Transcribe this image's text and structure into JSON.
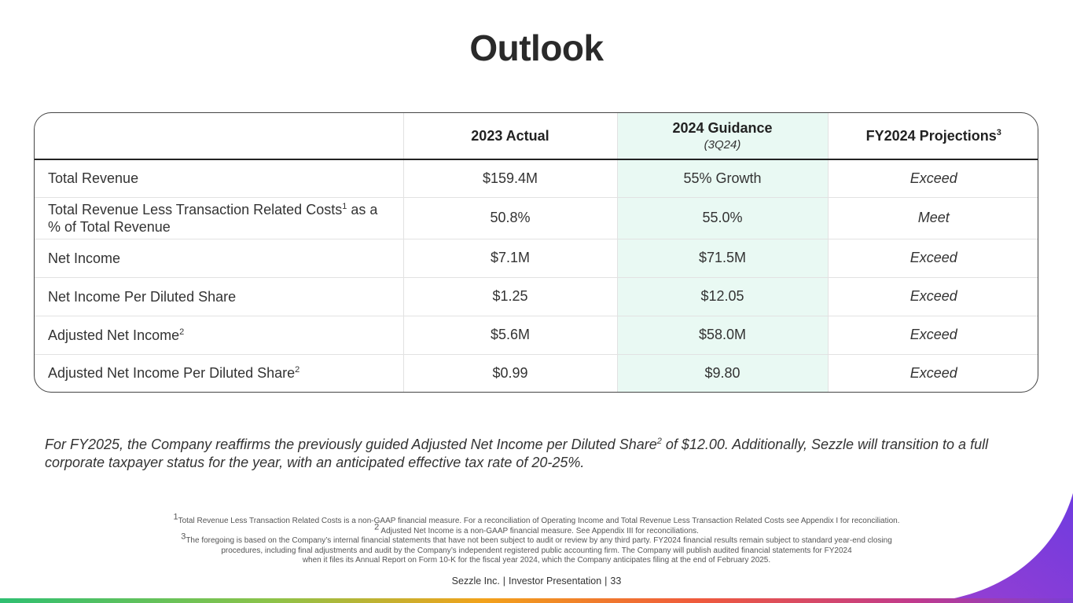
{
  "title": "Outlook",
  "table": {
    "headers": {
      "col2": "2023 Actual",
      "col3": "2024 Guidance",
      "col3_sub": "(3Q24)",
      "col4": "FY2024 Projections",
      "col4_sup": "3"
    },
    "rows": [
      {
        "label": "Total Revenue",
        "sup": "",
        "label_cont": "",
        "actual": "$159.4M",
        "guidance": "55% Growth",
        "projection": "Exceed"
      },
      {
        "label": "Total Revenue Less Transaction Related Costs",
        "sup": "1",
        "label_cont": " as a % of Total Revenue",
        "actual": "50.8%",
        "guidance": "55.0%",
        "projection": "Meet"
      },
      {
        "label": "Net Income",
        "sup": "",
        "label_cont": "",
        "actual": "$7.1M",
        "guidance": "$71.5M",
        "projection": "Exceed"
      },
      {
        "label": "Net Income Per Diluted Share",
        "sup": "",
        "label_cont": "",
        "actual": "$1.25",
        "guidance": "$12.05",
        "projection": "Exceed"
      },
      {
        "label": "Adjusted Net Income",
        "sup": "2",
        "label_cont": "",
        "actual": "$5.6M",
        "guidance": "$58.0M",
        "projection": "Exceed"
      },
      {
        "label": "Adjusted Net Income Per Diluted Share",
        "sup": "2",
        "label_cont": "",
        "actual": "$0.99",
        "guidance": "$9.80",
        "projection": "Exceed"
      }
    ]
  },
  "note": {
    "part1": "For FY2025, the Company reaffirms the previously guided Adjusted Net Income per Diluted Share",
    "sup": "2",
    "part2": " of $12.00. Additionally, Sezzle will transition to a full corporate taxpayer status for the year, with an anticipated effective tax rate of 20-25%."
  },
  "footnotes": {
    "f1_sup": "1",
    "f1": "Total Revenue Less Transaction Related Costs is a non-GAAP financial measure. For a reconciliation of Operating Income and Total Revenue Less Transaction Related Costs see Appendix I for reconciliation.",
    "f2_sup": "2",
    "f2": " Adjusted Net Income is a non-GAAP financial measure. See Appendix III for reconciliations.",
    "f3_sup": "3",
    "f3_line1": "The foregoing is based on the Company’s internal financial statements that have not been subject to audit or review by any third party. FY2024 financial results remain subject to standard year-end closing",
    "f3_line2": "procedures, including final adjustments and audit by the Company’s independent registered public accounting firm. The Company will publish audited financial statements for FY2024",
    "f3_line3": "when it files its Annual Report on Form 10-K for the fiscal year 2024, which the Company anticipates filing at the end of February 2025."
  },
  "footer": {
    "company": "Sezzle Inc.",
    "doc": "Investor Presentation",
    "page": "33"
  },
  "colors": {
    "guidance_highlight": "#e9f9f3",
    "corner_purple": "#7a3fd4"
  }
}
